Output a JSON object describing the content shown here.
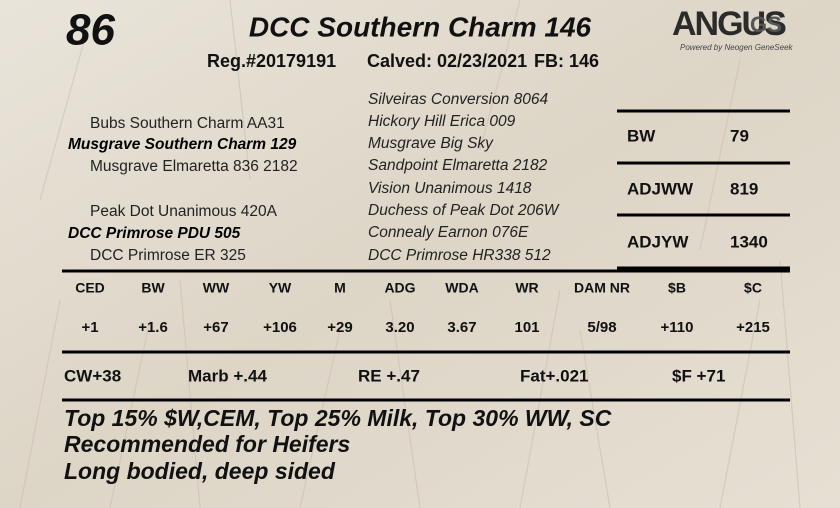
{
  "lot": "86",
  "title": "DCC Southern Charm 146",
  "info": [
    "Reg.#20179191",
    "Calved: 02/23/2021",
    "FB: 146"
  ],
  "logo": {
    "brand": "ANGUS",
    "suffix": "GS",
    "tagline": "Powered by Neogen GeneSeek"
  },
  "pedigree": {
    "sire": {
      "sire": "Bubs Southern Charm AA31",
      "name": "Musgrave Southern Charm 129",
      "dam": "Musgrave Elmaretta 836 2182"
    },
    "dam": {
      "sire": "Peak Dot Unanimous 420A",
      "name": "DCC Primrose PDU 505",
      "dam": "DCC Primrose ER 325"
    },
    "grandparents": [
      "Silveiras Conversion 8064",
      "Hickory Hill Erica 009",
      "Musgrave Big Sky",
      "Sandpoint Elmaretta 2182",
      "Vision Unanimous 1418",
      "Duchess of Peak Dot 206W",
      "Connealy Earnon 076E",
      "DCC Primrose HR338 512"
    ]
  },
  "weights": [
    {
      "label": "BW",
      "value": "79"
    },
    {
      "label": "ADJWW",
      "value": "819"
    },
    {
      "label": "ADJYW",
      "value": "1340"
    }
  ],
  "epds": {
    "headers": [
      "CED",
      "BW",
      "WW",
      "YW",
      "M",
      "ADG",
      "WDA",
      "WR",
      "DAM NR",
      "$B",
      "$C"
    ],
    "values": [
      "+1",
      "+1.6",
      "+67",
      "+106",
      "+29",
      "3.20",
      "3.67",
      "101",
      "5/98",
      "+110",
      "+215"
    ]
  },
  "traits": [
    "CW+38",
    "Marb +.44",
    "RE +.47",
    "Fat+.021",
    "$F +71"
  ],
  "notes": [
    "Top 15% $W,CEM, Top 25% Milk, Top 30% WW, SC",
    "Recommended for Heifers",
    "Long bodied, deep sided"
  ]
}
